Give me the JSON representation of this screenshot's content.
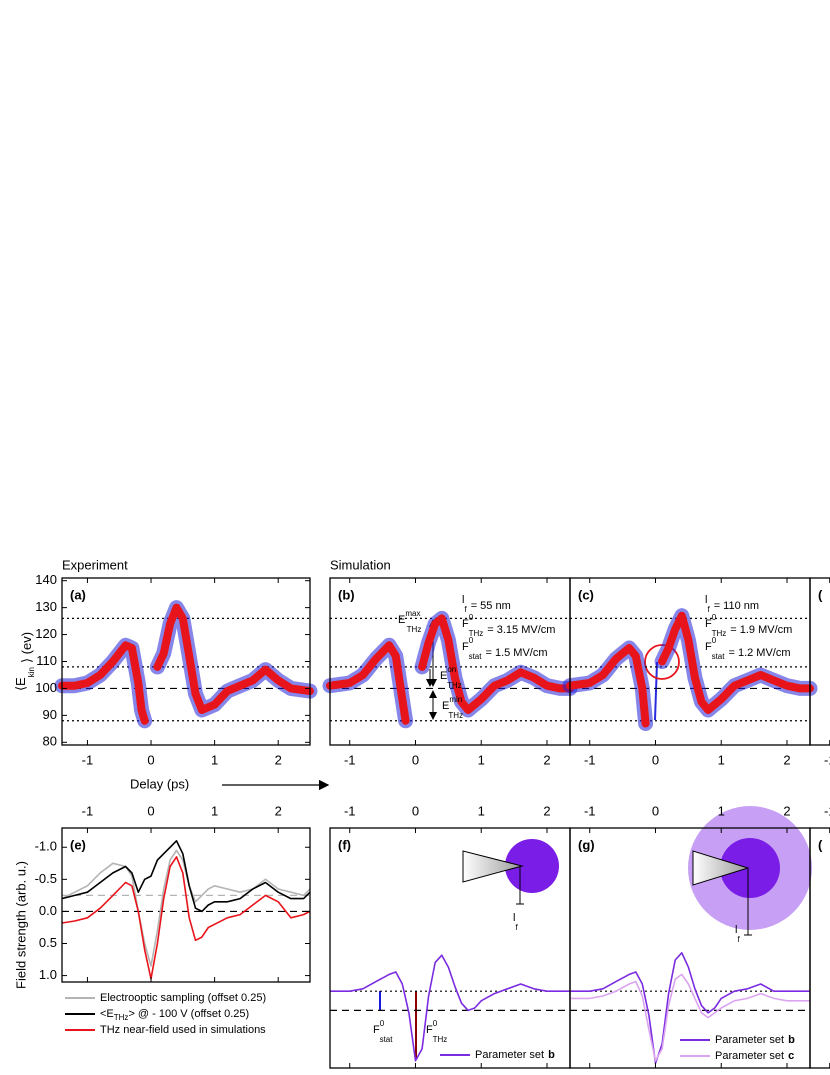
{
  "headers": {
    "experiment": "Experiment",
    "simulation": "Simulation",
    "x_label": "Delay (ps)"
  },
  "chart_data": [
    {
      "type": "spectrogram",
      "label": "(a)",
      "xlim": [
        -1.4,
        2.5
      ],
      "xticks": [
        -1,
        0,
        1,
        2
      ],
      "ylim": [
        79,
        141
      ],
      "yticks": [
        80,
        90,
        100,
        110,
        120,
        130,
        140
      ],
      "y_label": {
        "symbol": "⟨E",
        "sub": "kin",
        "text": "⟩ (ev)"
      },
      "x": [
        -1.4,
        -1.2,
        -1.0,
        -0.8,
        -0.6,
        -0.4,
        -0.3,
        -0.2,
        -0.15,
        -0.1,
        0,
        0.1,
        0.2,
        0.3,
        0.4,
        0.5,
        0.6,
        0.7,
        0.8,
        1.0,
        1.2,
        1.4,
        1.6,
        1.8,
        2.0,
        2.2,
        2.5
      ],
      "series": [
        {
          "color": "#e8141b",
          "edge_color": "#2222d8",
          "values": [
            101,
            101,
            102,
            105,
            110,
            116,
            115,
            102,
            92,
            88,
            null,
            108,
            113,
            124,
            130,
            126,
            112,
            98,
            92,
            94,
            99,
            101,
            103,
            107,
            103,
            100,
            99
          ]
        }
      ],
      "hlines": [
        {
          "value": 126,
          "style": "dotted"
        },
        {
          "value": 108,
          "style": "dotted"
        },
        {
          "value": 100,
          "style": "dashed"
        },
        {
          "value": 88,
          "style": "dotted"
        }
      ]
    },
    {
      "type": "spectrogram",
      "label": "(b)",
      "xlim": [
        -1.3,
        2.35
      ],
      "xticks": [
        -1,
        0,
        1,
        2
      ],
      "ylim": [
        79,
        141
      ],
      "x": [
        -1.3,
        -1.0,
        -0.8,
        -0.6,
        -0.4,
        -0.3,
        -0.2,
        -0.15,
        0,
        0.1,
        0.2,
        0.3,
        0.4,
        0.5,
        0.6,
        0.7,
        0.8,
        1.0,
        1.2,
        1.4,
        1.6,
        1.8,
        2.0,
        2.2,
        2.35
      ],
      "series": [
        {
          "color": "#e8141b",
          "edge_color": "#2222d8",
          "values": [
            101,
            102,
            105,
            111,
            116,
            112,
            96,
            88,
            null,
            108,
            117,
            124,
            126,
            118,
            104,
            95,
            92,
            96,
            101,
            103,
            106,
            104,
            101,
            100,
            100
          ]
        }
      ],
      "hlines": [
        {
          "value": 126,
          "style": "dotted"
        },
        {
          "value": 108,
          "style": "dotted"
        },
        {
          "value": 100,
          "style": "dashed"
        },
        {
          "value": 88,
          "style": "dotted"
        }
      ],
      "annotations": [
        {
          "symbol": "l",
          "sub": "f",
          "text": "= 55 nm"
        },
        {
          "symbol": "F",
          "sup": "0",
          "sub": "THz",
          "text": "= 3.15 MV/cm"
        },
        {
          "symbol": "F",
          "sup": "0",
          "sub": "stat",
          "text": "= 1.5 MV/cm"
        }
      ],
      "energy_labels": [
        {
          "symbol": "E",
          "sup": "max",
          "sub": "THz"
        },
        {
          "symbol": "E",
          "sup": "on",
          "sub": "THz"
        },
        {
          "symbol": "E",
          "sup": "min",
          "sub": "THz"
        }
      ]
    },
    {
      "type": "spectrogram",
      "label": "(c)",
      "xlim": [
        -1.3,
        2.35
      ],
      "xticks": [
        -1,
        0,
        1,
        2
      ],
      "ylim": [
        79,
        141
      ],
      "x": [
        -1.3,
        -1.0,
        -0.8,
        -0.6,
        -0.4,
        -0.3,
        -0.2,
        -0.15,
        0,
        0.1,
        0.2,
        0.3,
        0.4,
        0.5,
        0.6,
        0.7,
        0.8,
        1.0,
        1.2,
        1.4,
        1.6,
        1.8,
        2.0,
        2.2,
        2.35
      ],
      "series": [
        {
          "color": "#e8141b",
          "edge_color": "#2222d8",
          "values": [
            101,
            102,
            105,
            111,
            115,
            112,
            100,
            87,
            null,
            110,
            115,
            122,
            127,
            118,
            104,
            95,
            92,
            96,
            101,
            103,
            105,
            103,
            101,
            100,
            100
          ]
        }
      ],
      "hlines": [
        {
          "value": 126,
          "style": "dotted"
        },
        {
          "value": 108,
          "style": "dotted"
        },
        {
          "value": 100,
          "style": "dashed"
        },
        {
          "value": 88,
          "style": "dotted"
        }
      ],
      "annotations": [
        {
          "symbol": "l",
          "sub": "f",
          "text": "= 110 nm"
        },
        {
          "symbol": "F",
          "sup": "0",
          "sub": "THz",
          "text": "= 1.9 MV/cm"
        },
        {
          "symbol": "F",
          "sup": "0",
          "sub": "stat",
          "text": "= 1.2 MV/cm"
        }
      ]
    },
    {
      "type": "stub",
      "label": "(",
      "xlim": [
        -1.3,
        2.35
      ],
      "xticks": [
        -1
      ]
    },
    {
      "type": "line",
      "label": "(e)",
      "xlim": [
        -1.4,
        2.5
      ],
      "xticks": [
        -1,
        0,
        1,
        2
      ],
      "ylim": [
        -1.3,
        1.1
      ],
      "y_inverted": true,
      "yticks": [
        {
          "value": -1,
          "label": "-1.0"
        },
        {
          "value": -0.5,
          "label": "-0.5"
        },
        {
          "value": 0,
          "label": "0.0"
        },
        {
          "value": 0.5,
          "label": "0.5"
        },
        {
          "value": 1,
          "label": "1.0"
        }
      ],
      "y_label": "Field strength (arb. u.)",
      "x": [
        -1.4,
        -1.2,
        -1.0,
        -0.8,
        -0.6,
        -0.4,
        -0.3,
        -0.2,
        -0.1,
        0,
        0.1,
        0.2,
        0.3,
        0.4,
        0.5,
        0.6,
        0.7,
        0.8,
        0.9,
        1.0,
        1.2,
        1.4,
        1.6,
        1.8,
        2.0,
        2.2,
        2.4,
        2.5
      ],
      "series": [
        {
          "name": "Electrooptic sampling (offset 0.25)",
          "color": "#b4b4b4",
          "values": [
            -0.2,
            -0.3,
            -0.4,
            -0.6,
            -0.75,
            -0.7,
            -0.55,
            0.0,
            0.5,
            0.85,
            0.3,
            -0.35,
            -0.8,
            -0.95,
            -0.8,
            -0.4,
            -0.15,
            -0.25,
            -0.35,
            -0.4,
            -0.35,
            -0.3,
            -0.35,
            -0.5,
            -0.35,
            -0.3,
            -0.25,
            -0.35
          ]
        },
        {
          "name": "<E",
          "name_sub": "THz",
          "name_rest": "> @ - 100 V (offset 0.25)",
          "color": "#000000",
          "values": [
            -0.2,
            -0.25,
            -0.3,
            -0.45,
            -0.6,
            -0.7,
            -0.6,
            -0.3,
            -0.5,
            -0.55,
            -0.8,
            -0.9,
            -1.0,
            -1.1,
            -0.9,
            -0.4,
            -0.05,
            0.0,
            -0.1,
            -0.15,
            -0.15,
            -0.2,
            -0.35,
            -0.45,
            -0.3,
            -0.2,
            -0.2,
            -0.3
          ]
        },
        {
          "name": "THz near-field used in simulations",
          "color": "#e8141b",
          "values": [
            0.18,
            0.15,
            0.1,
            -0.05,
            -0.25,
            -0.45,
            -0.4,
            0.0,
            0.6,
            1.05,
            0.5,
            -0.2,
            -0.7,
            -0.85,
            -0.6,
            0.1,
            0.45,
            0.4,
            0.25,
            0.2,
            0.1,
            0.05,
            -0.1,
            -0.25,
            -0.15,
            0.1,
            0.05,
            0.0
          ]
        }
      ],
      "hlines": [
        {
          "value": -0.25,
          "style": "dashed",
          "color": "#b4b4b4"
        },
        {
          "value": 0,
          "style": "dashed",
          "color": "#000000"
        }
      ]
    },
    {
      "type": "line",
      "label": "(f)",
      "xlim": [
        -1.3,
        2.35
      ],
      "xticks": [
        -1,
        0,
        1,
        2
      ],
      "ylim": [
        0,
        10
      ],
      "x": [
        -1.3,
        -1.0,
        -0.8,
        -0.6,
        -0.4,
        -0.3,
        -0.2,
        -0.1,
        0,
        0.1,
        0.2,
        0.3,
        0.4,
        0.5,
        0.6,
        0.7,
        0.8,
        0.9,
        1.0,
        1.2,
        1.4,
        1.6,
        1.8,
        2.0,
        2.2,
        2.35
      ],
      "series": [
        {
          "name": "Parameter set",
          "name_bold": "b",
          "color": "#7b2be0",
          "values": [
            3.2,
            3.2,
            3.3,
            3.6,
            3.9,
            4.0,
            3.5,
            2.3,
            0.3,
            0.8,
            3.0,
            4.4,
            4.7,
            4.2,
            3.4,
            2.7,
            2.4,
            2.5,
            2.8,
            3.1,
            3.3,
            3.5,
            3.3,
            3.2,
            3.2,
            3.2
          ]
        }
      ],
      "hlines": [
        {
          "value": 3.2,
          "style": "dotted"
        },
        {
          "value": 2.4,
          "style": "dashed"
        }
      ],
      "annotations": [
        {
          "symbol": "F",
          "sup": "0",
          "sub": "stat",
          "color": "#1a1adf"
        },
        {
          "symbol": "F",
          "sup": "0",
          "sub": "THz",
          "color": "#8b0000"
        },
        {
          "symbol": "l",
          "sub": "f"
        }
      ]
    },
    {
      "type": "line",
      "label": "(g)",
      "xlim": [
        -1.3,
        2.35
      ],
      "xticks": [
        -1,
        0,
        1,
        2
      ],
      "ylim": [
        0,
        10
      ],
      "x": [
        -1.3,
        -1.0,
        -0.8,
        -0.6,
        -0.4,
        -0.3,
        -0.2,
        -0.1,
        0,
        0.1,
        0.2,
        0.3,
        0.4,
        0.5,
        0.6,
        0.7,
        0.8,
        0.9,
        1.0,
        1.2,
        1.4,
        1.6,
        1.8,
        2.0,
        2.2,
        2.35
      ],
      "series": [
        {
          "name": "Parameter set",
          "name_bold": "b",
          "color": "#7b2be0",
          "values": [
            3.2,
            3.2,
            3.3,
            3.6,
            3.9,
            4.0,
            3.5,
            2.2,
            0.2,
            1.0,
            3.1,
            4.5,
            4.8,
            4.2,
            3.3,
            2.6,
            2.3,
            2.5,
            2.9,
            3.2,
            3.3,
            3.5,
            3.2,
            3.2,
            3.2,
            3.2
          ]
        },
        {
          "name": "Parameter set",
          "name_bold": "c",
          "color": "#dba4f0",
          "values": [
            2.9,
            2.9,
            3.0,
            3.2,
            3.5,
            3.6,
            3.0,
            1.6,
            0.3,
            0.8,
            2.6,
            3.7,
            3.9,
            3.5,
            2.9,
            2.3,
            2.1,
            2.3,
            2.5,
            2.8,
            2.9,
            3.1,
            2.9,
            2.8,
            2.8,
            2.8
          ]
        }
      ],
      "hlines": [
        {
          "value": 3.2,
          "style": "dotted"
        },
        {
          "value": 2.4,
          "style": "dashed"
        }
      ],
      "annotations": [
        {
          "symbol": "l",
          "sub": "f"
        }
      ]
    },
    {
      "type": "stub",
      "label": "(",
      "xlim": [
        -1.3,
        2.35
      ],
      "xticks": [
        -1
      ]
    }
  ]
}
